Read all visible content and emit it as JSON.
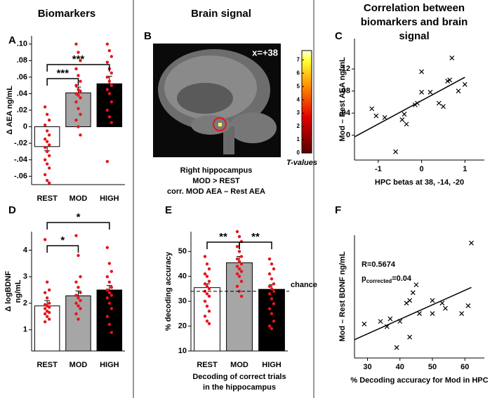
{
  "headers": [
    "Biomarkers",
    "Brain signal",
    [
      "Correlation between",
      "biomarkers and brain",
      "signal"
    ]
  ],
  "chart_data": [
    {
      "type": "bar",
      "panel": "A",
      "ylabel": [
        "Δ AEA ng/mL"
      ],
      "categories": [
        "REST",
        "MOD",
        "HIGH"
      ],
      "values": [
        -0.024,
        0.041,
        0.052
      ],
      "errors": [
        0.005,
        0.007,
        0.009
      ],
      "colors": [
        "#ffffff",
        "#a6a6a6",
        "#000000"
      ],
      "point_color": "#e8141b",
      "points": [
        [
          0.024,
          0.015,
          0.008,
          0.002,
          -0.005,
          -0.01,
          -0.015,
          -0.018,
          -0.022,
          -0.025,
          -0.03,
          -0.035,
          -0.04,
          -0.045,
          -0.05,
          -0.058,
          -0.065,
          -0.068
        ],
        [
          0.1,
          0.09,
          0.08,
          0.07,
          0.062,
          0.055,
          0.05,
          0.045,
          0.043,
          0.04,
          0.038,
          0.035,
          0.03,
          0.022,
          0.015,
          0.008,
          0.0,
          -0.01
        ],
        [
          0.1,
          0.092,
          0.085,
          0.078,
          0.07,
          0.065,
          0.06,
          0.055,
          0.05,
          0.045,
          0.04,
          0.03,
          0.02,
          0.012,
          0.005,
          -0.042
        ]
      ],
      "ylim": [
        -0.07,
        0.11
      ],
      "yticks": [
        {
          "value": -0.06,
          "label": "-.06"
        },
        {
          "value": -0.04,
          "label": "-.04"
        },
        {
          "value": -0.02,
          "label": "-.02"
        },
        0,
        {
          "value": 0.02,
          "label": ".02"
        },
        {
          "value": 0.04,
          "label": ".04"
        },
        {
          "value": 0.06,
          "label": ".06"
        },
        {
          "value": 0.08,
          "label": ".08"
        },
        {
          "value": 0.1,
          "label": ".10"
        }
      ],
      "significance": [
        "***",
        "***"
      ]
    },
    {
      "type": "image",
      "panel": "B",
      "annotation": "x=+38",
      "colorbar_label": "T-values",
      "colorbar_lim": [
        0,
        7.7
      ],
      "colorbar_ticks": [
        0,
        1,
        2,
        3,
        4,
        5,
        6,
        7
      ],
      "caption": [
        "Right hippocampus",
        "MOD > REST",
        "corr. MOD AEA – Rest AEA"
      ]
    },
    {
      "type": "scatter",
      "panel": "C",
      "xlabel": "HPC betas at 38, -14, -20",
      "ylabel": "Mod – Rest AEA ng/mL",
      "x": [
        -1.15,
        -1.05,
        -0.85,
        -0.6,
        -0.45,
        -0.4,
        -0.35,
        -0.15,
        -0.1,
        0.0,
        0.0,
        0.2,
        0.4,
        0.5,
        0.6,
        0.65,
        0.7,
        0.85,
        1.0
      ],
      "y": [
        0.048,
        0.035,
        0.032,
        -0.03,
        0.028,
        0.038,
        0.02,
        0.055,
        0.058,
        0.078,
        0.115,
        0.078,
        0.058,
        0.052,
        0.098,
        0.1,
        0.14,
        0.08,
        0.092
      ],
      "fit": {
        "x": [
          -1.55,
          1.0
        ],
        "y": [
          -0.003,
          0.105
        ]
      },
      "xlim": [
        -1.55,
        1.45
      ],
      "ylim": [
        -0.045,
        0.175
      ],
      "xticks": [
        -1,
        0,
        1
      ],
      "yticks": [
        0,
        {
          "value": 0.04,
          "label": ".04"
        },
        {
          "value": 0.08,
          "label": ".08"
        },
        {
          "value": 0.12,
          "label": ".12"
        }
      ]
    },
    {
      "type": "bar",
      "panel": "D",
      "ylabel": [
        "Δ logBDNF",
        "ng/mL"
      ],
      "categories": [
        "REST",
        "MOD",
        "HIGH"
      ],
      "values": [
        1.9,
        2.28,
        2.5
      ],
      "errors": [
        0.2,
        0.18,
        0.17
      ],
      "colors": [
        "#ffffff",
        "#a6a6a6",
        "#000000"
      ],
      "point_color": "#e8141b",
      "points": [
        [
          4.4,
          2.8,
          2.5,
          2.4,
          2.2,
          2.0,
          1.95,
          1.9,
          1.85,
          1.8,
          1.7,
          1.65,
          1.6,
          1.5,
          1.4,
          1.3
        ],
        [
          4.55,
          3.8,
          3.0,
          2.8,
          2.6,
          2.4,
          2.3,
          2.2,
          2.1,
          2.0,
          1.9,
          1.8,
          1.6,
          1.4
        ],
        [
          4.1,
          3.5,
          3.2,
          3.0,
          2.8,
          2.6,
          2.5,
          2.4,
          2.3,
          2.2,
          2.0,
          1.8,
          1.5,
          1.2,
          0.9
        ]
      ],
      "ylim": [
        0.2,
        4.7
      ],
      "yticks": [
        1,
        2,
        3,
        4
      ],
      "significance": [
        "*",
        "*"
      ]
    },
    {
      "type": "bar",
      "panel": "E",
      "ylabel": [
        "% decoding accuracy"
      ],
      "xlabel": [
        "Decoding of correct trials",
        "in the hippocampus"
      ],
      "categories": [
        "REST",
        "MOD",
        "HIGH"
      ],
      "values": [
        35.5,
        45.5,
        34.8
      ],
      "errors": [
        1.5,
        2.5,
        1.8
      ],
      "colors": [
        "#ffffff",
        "#a6a6a6",
        "#000000"
      ],
      "point_color": "#e8141b",
      "points": [
        [
          48,
          45,
          43,
          41,
          40,
          38,
          37,
          36,
          35,
          34,
          33,
          32,
          30,
          28,
          26,
          24,
          22,
          21
        ],
        [
          58,
          56,
          54,
          52,
          50,
          48,
          47,
          46,
          45,
          44,
          43,
          42,
          41,
          40,
          38,
          36,
          34,
          32
        ],
        [
          47,
          45,
          43,
          41,
          39,
          37,
          36,
          35,
          34,
          33,
          31,
          29,
          27,
          25,
          22,
          20,
          19
        ]
      ],
      "hline": {
        "value": 34,
        "label": "chance"
      },
      "ylim": [
        10,
        58
      ],
      "yticks": [
        10,
        20,
        30,
        40,
        50
      ],
      "significance": [
        "**",
        "**"
      ]
    },
    {
      "type": "scatter",
      "panel": "F",
      "xlabel": "% Decoding accuracy for Mod in HPC",
      "ylabel": "Mod – Rest BDNF ng/mL",
      "x": [
        29,
        34,
        36,
        37,
        39,
        40,
        42,
        43,
        43,
        44,
        45,
        46,
        50,
        50,
        53,
        54,
        59,
        61,
        62
      ],
      "y": [
        -1,
        0,
        -2,
        1,
        -10,
        0,
        7,
        8,
        -6,
        11,
        14,
        3,
        8,
        3,
        7,
        5,
        3,
        6,
        30
      ],
      "fit": {
        "x": [
          26,
          62
        ],
        "y": [
          -7,
          13
        ]
      },
      "stats": {
        "r": "R=0.5674",
        "p": [
          "p",
          "corrected",
          "=0.04"
        ]
      },
      "xlim": [
        26,
        66
      ],
      "ylim": [
        -14,
        33
      ],
      "xticks": [
        30,
        40,
        50,
        60
      ]
    }
  ]
}
